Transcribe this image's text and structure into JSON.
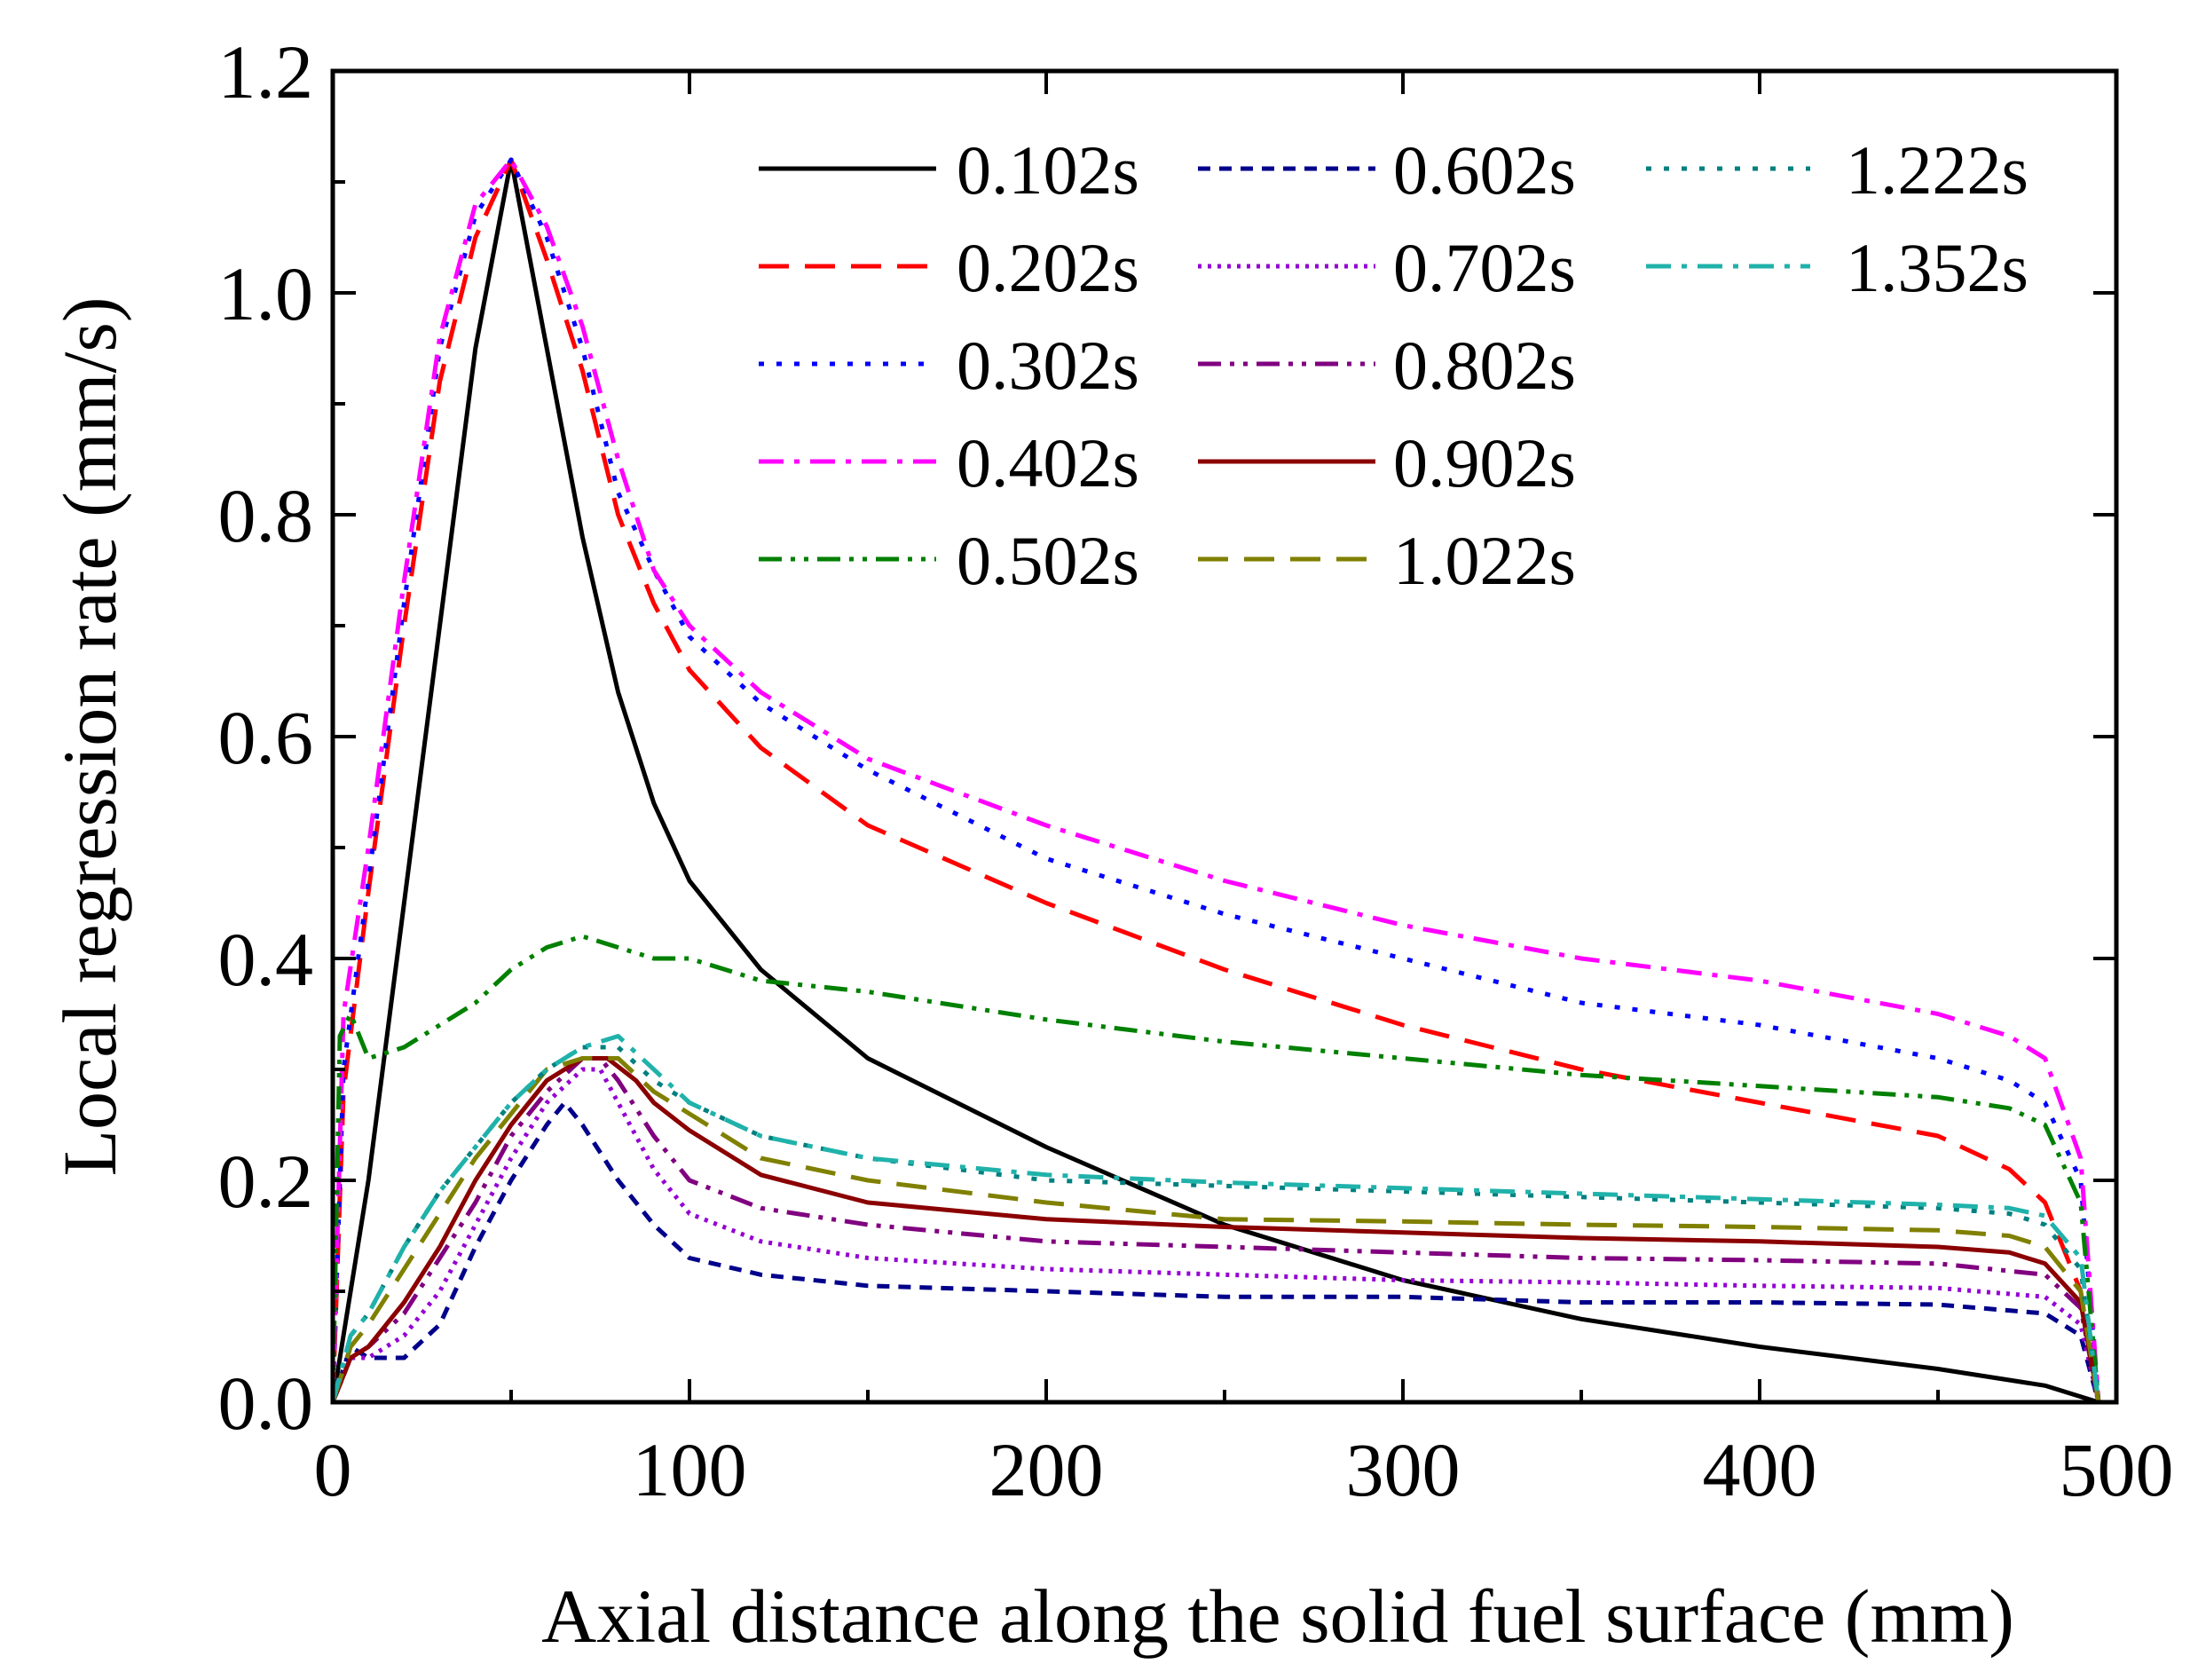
{
  "chart_data": {
    "type": "line",
    "title": "",
    "xlabel": "Axial distance along the solid fuel surface (mm)",
    "ylabel": "Local regression rate (mm/s)",
    "xlim": [
      0,
      500
    ],
    "ylim": [
      0,
      1.2
    ],
    "xticks": [
      0,
      100,
      200,
      300,
      400,
      500
    ],
    "yticks": [
      0.0,
      0.2,
      0.4,
      0.6,
      0.8,
      1.0,
      1.2
    ],
    "xtick_labels": [
      "0",
      "100",
      "200",
      "300",
      "400",
      "500"
    ],
    "ytick_labels": [
      "0.0",
      "0.2",
      "0.4",
      "0.6",
      "0.8",
      "1.0",
      "1.2"
    ],
    "grid": false,
    "legend_position": "top-right",
    "series": [
      {
        "name": "0.102s",
        "color": "#000000",
        "dash": "solid",
        "x": [
          0,
          10,
          20,
          30,
          40,
          50,
          60,
          70,
          80,
          90,
          100,
          120,
          150,
          200,
          250,
          300,
          350,
          400,
          450,
          480,
          490,
          495
        ],
        "y": [
          0.0,
          0.2,
          0.45,
          0.7,
          0.95,
          1.12,
          0.95,
          0.78,
          0.64,
          0.54,
          0.47,
          0.39,
          0.31,
          0.23,
          0.16,
          0.11,
          0.075,
          0.05,
          0.03,
          0.015,
          0.005,
          0.0
        ]
      },
      {
        "name": "0.202s",
        "color": "#ff0000",
        "dash": "long-dash",
        "x": [
          0,
          3,
          10,
          20,
          30,
          40,
          50,
          60,
          70,
          80,
          90,
          100,
          120,
          150,
          200,
          250,
          300,
          350,
          400,
          450,
          470,
          480,
          490,
          495
        ],
        "y": [
          0.0,
          0.28,
          0.46,
          0.7,
          0.92,
          1.05,
          1.12,
          1.03,
          0.93,
          0.8,
          0.72,
          0.66,
          0.59,
          0.52,
          0.45,
          0.39,
          0.34,
          0.3,
          0.27,
          0.24,
          0.21,
          0.18,
          0.1,
          0.0
        ]
      },
      {
        "name": "0.302s",
        "color": "#0000ff",
        "dash": "dot",
        "x": [
          0,
          3,
          10,
          20,
          30,
          40,
          50,
          60,
          70,
          80,
          90,
          100,
          120,
          150,
          200,
          250,
          300,
          350,
          400,
          450,
          470,
          480,
          490,
          495
        ],
        "y": [
          0.0,
          0.3,
          0.47,
          0.72,
          0.95,
          1.07,
          1.12,
          1.05,
          0.95,
          0.82,
          0.75,
          0.69,
          0.63,
          0.57,
          0.49,
          0.44,
          0.4,
          0.36,
          0.34,
          0.31,
          0.29,
          0.27,
          0.2,
          0.0
        ]
      },
      {
        "name": "0.402s",
        "color": "#ff00ff",
        "dash": "dash-dot",
        "x": [
          0,
          3,
          10,
          20,
          30,
          40,
          50,
          60,
          70,
          80,
          90,
          100,
          120,
          150,
          200,
          250,
          300,
          350,
          400,
          450,
          470,
          480,
          490,
          495
        ],
        "y": [
          0.0,
          0.35,
          0.5,
          0.74,
          0.96,
          1.08,
          1.12,
          1.06,
          0.97,
          0.85,
          0.75,
          0.7,
          0.64,
          0.58,
          0.52,
          0.47,
          0.43,
          0.4,
          0.38,
          0.35,
          0.33,
          0.31,
          0.22,
          0.0
        ]
      },
      {
        "name": "0.502s",
        "color": "#008000",
        "dash": "dash-dot-dot",
        "x": [
          0,
          2,
          5,
          10,
          20,
          30,
          40,
          50,
          60,
          70,
          80,
          90,
          100,
          120,
          150,
          200,
          250,
          300,
          350,
          400,
          450,
          470,
          480,
          490,
          495
        ],
        "y": [
          0.0,
          0.33,
          0.35,
          0.31,
          0.32,
          0.34,
          0.36,
          0.39,
          0.41,
          0.42,
          0.41,
          0.4,
          0.4,
          0.38,
          0.37,
          0.345,
          0.325,
          0.31,
          0.295,
          0.285,
          0.275,
          0.265,
          0.25,
          0.18,
          0.0
        ]
      },
      {
        "name": "0.602s",
        "color": "#00008b",
        "dash": "short-dash",
        "x": [
          0,
          5,
          10,
          20,
          30,
          40,
          50,
          60,
          65,
          70,
          80,
          90,
          100,
          120,
          150,
          200,
          250,
          300,
          350,
          400,
          450,
          480,
          490,
          495
        ],
        "y": [
          0.0,
          0.05,
          0.04,
          0.04,
          0.07,
          0.14,
          0.2,
          0.25,
          0.27,
          0.25,
          0.2,
          0.16,
          0.13,
          0.115,
          0.105,
          0.1,
          0.095,
          0.095,
          0.09,
          0.09,
          0.088,
          0.08,
          0.06,
          0.0
        ]
      },
      {
        "name": "0.702s",
        "color": "#9400d3",
        "dash": "fine-dot",
        "x": [
          0,
          5,
          10,
          20,
          30,
          40,
          50,
          60,
          70,
          75,
          80,
          90,
          100,
          120,
          150,
          200,
          250,
          300,
          350,
          400,
          450,
          480,
          490,
          495
        ],
        "y": [
          0.0,
          0.04,
          0.04,
          0.06,
          0.1,
          0.16,
          0.22,
          0.27,
          0.3,
          0.3,
          0.27,
          0.21,
          0.17,
          0.145,
          0.13,
          0.12,
          0.115,
          0.11,
          0.108,
          0.105,
          0.103,
          0.095,
          0.07,
          0.0
        ]
      },
      {
        "name": "0.802s",
        "color": "#800080",
        "dash": "dash-dot-dot",
        "x": [
          0,
          5,
          10,
          20,
          30,
          40,
          50,
          60,
          70,
          75,
          80,
          90,
          100,
          120,
          150,
          200,
          250,
          300,
          350,
          400,
          450,
          480,
          490,
          495
        ],
        "y": [
          0.0,
          0.04,
          0.05,
          0.08,
          0.13,
          0.18,
          0.24,
          0.28,
          0.31,
          0.31,
          0.29,
          0.24,
          0.2,
          0.175,
          0.16,
          0.145,
          0.14,
          0.135,
          0.13,
          0.128,
          0.125,
          0.115,
          0.085,
          0.0
        ]
      },
      {
        "name": "0.902s",
        "color": "#8b0000",
        "dash": "solid",
        "x": [
          0,
          5,
          10,
          20,
          30,
          40,
          50,
          60,
          70,
          77,
          85,
          90,
          100,
          120,
          150,
          200,
          250,
          300,
          350,
          400,
          450,
          470,
          480,
          490,
          495
        ],
        "y": [
          0.0,
          0.04,
          0.05,
          0.09,
          0.14,
          0.2,
          0.25,
          0.29,
          0.31,
          0.31,
          0.29,
          0.27,
          0.245,
          0.205,
          0.18,
          0.165,
          0.158,
          0.153,
          0.148,
          0.145,
          0.14,
          0.135,
          0.125,
          0.09,
          0.0
        ]
      },
      {
        "name": "1.022s",
        "color": "#808000",
        "dash": "long-dash",
        "x": [
          0,
          5,
          10,
          20,
          30,
          40,
          50,
          60,
          70,
          80,
          90,
          100,
          120,
          150,
          200,
          250,
          300,
          350,
          400,
          450,
          470,
          480,
          490,
          495
        ],
        "y": [
          0.0,
          0.05,
          0.07,
          0.12,
          0.17,
          0.22,
          0.26,
          0.3,
          0.31,
          0.31,
          0.28,
          0.26,
          0.22,
          0.2,
          0.18,
          0.165,
          0.163,
          0.16,
          0.158,
          0.155,
          0.15,
          0.14,
          0.1,
          0.0
        ]
      },
      {
        "name": "1.222s",
        "color": "#008080",
        "dash": "dot",
        "x": [
          0,
          5,
          10,
          20,
          30,
          40,
          50,
          60,
          70,
          80,
          90,
          100,
          120,
          150,
          200,
          250,
          300,
          350,
          400,
          450,
          470,
          480,
          490,
          495
        ],
        "y": [
          0.0,
          0.06,
          0.08,
          0.14,
          0.19,
          0.23,
          0.27,
          0.3,
          0.32,
          0.32,
          0.29,
          0.27,
          0.24,
          0.22,
          0.2,
          0.195,
          0.19,
          0.185,
          0.18,
          0.175,
          0.17,
          0.16,
          0.12,
          0.0
        ]
      },
      {
        "name": "1.352s",
        "color": "#20b2aa",
        "dash": "dash-dot",
        "x": [
          0,
          5,
          10,
          20,
          30,
          40,
          50,
          60,
          70,
          80,
          90,
          100,
          120,
          150,
          200,
          250,
          300,
          350,
          400,
          450,
          470,
          480,
          490,
          495
        ],
        "y": [
          0.0,
          0.06,
          0.08,
          0.14,
          0.19,
          0.23,
          0.27,
          0.3,
          0.32,
          0.33,
          0.3,
          0.27,
          0.24,
          0.22,
          0.205,
          0.198,
          0.193,
          0.188,
          0.183,
          0.178,
          0.175,
          0.168,
          0.13,
          0.0
        ]
      }
    ]
  }
}
